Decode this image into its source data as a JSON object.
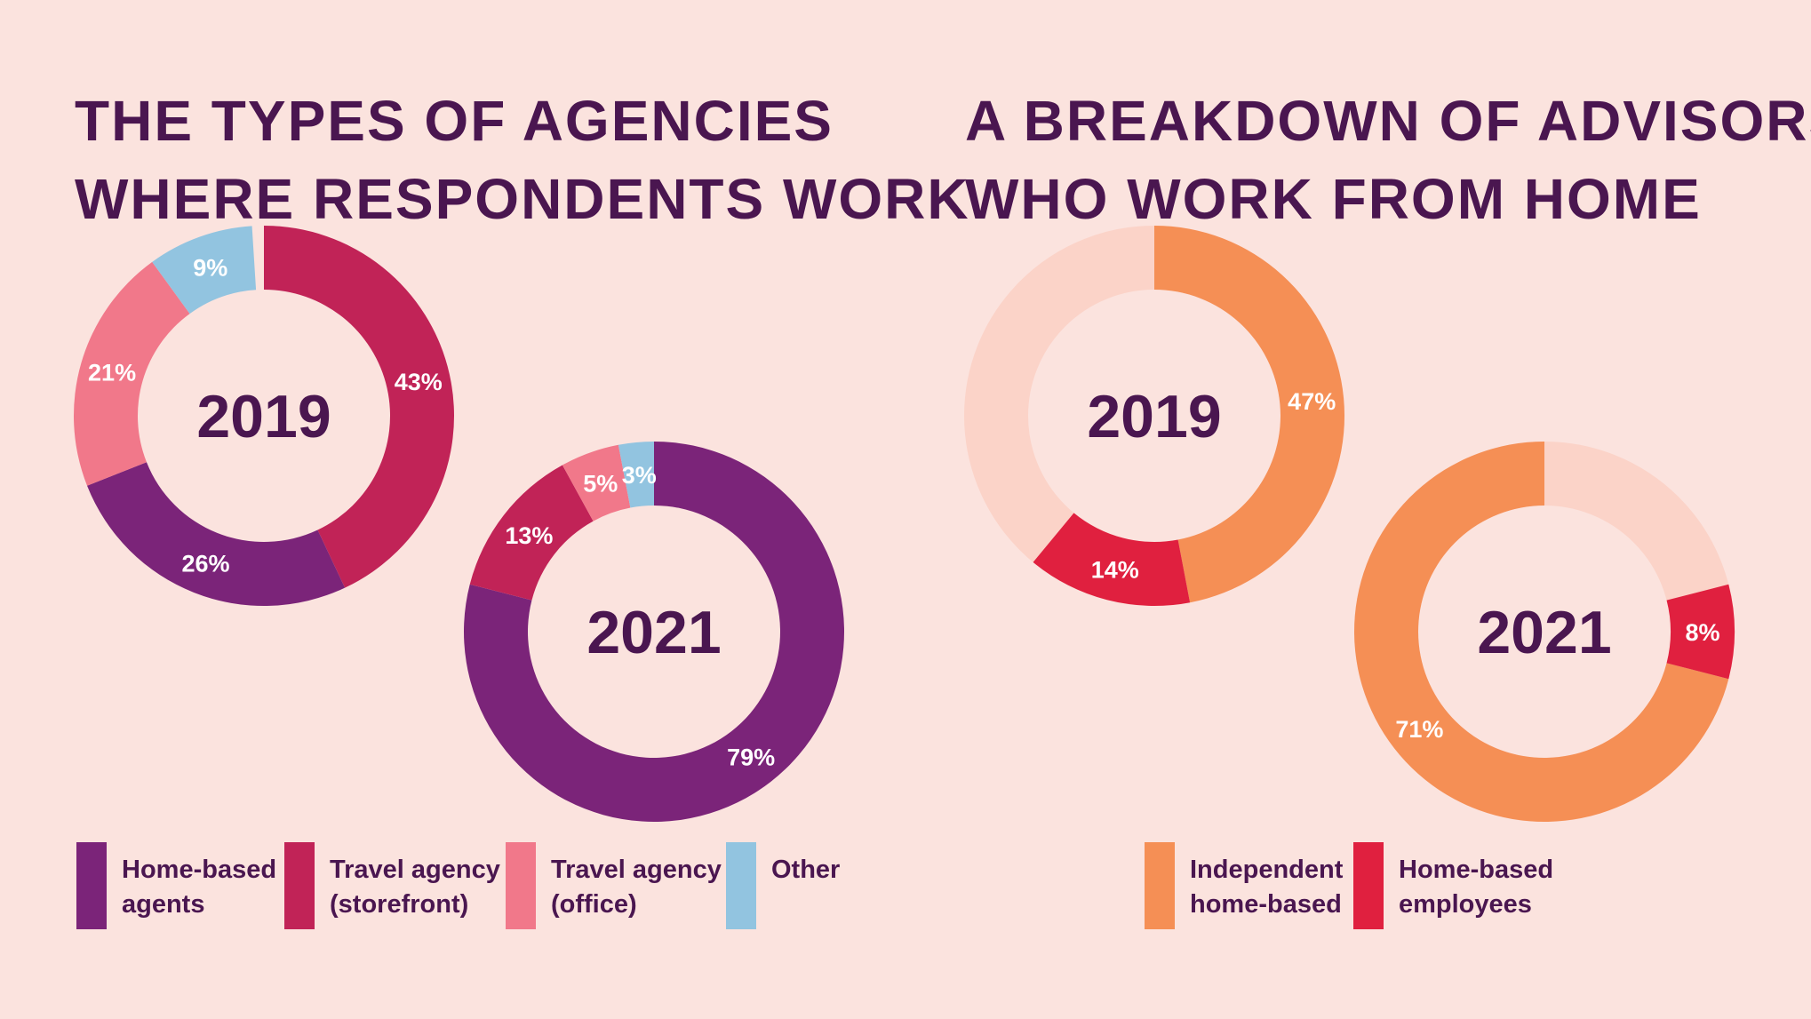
{
  "panels": {
    "left": {
      "title_line1": "THE TYPES OF AGENCIES",
      "title_line2": "WHERE RESPONDENTS WORK",
      "legend": [
        {
          "line1": "Home-based",
          "line2": "agents",
          "color": "#7b2479"
        },
        {
          "line1": "Travel agency",
          "line2": "(storefront)",
          "color": "#c12357"
        },
        {
          "line1": "Travel agency",
          "line2": "(office)",
          "color": "#f1788a"
        },
        {
          "line1": "Other",
          "line2": "",
          "color": "#92c4e0"
        }
      ]
    },
    "right": {
      "title_line1": "A BREAKDOWN OF ADVISORS",
      "title_line2": "WHO WORK FROM HOME",
      "legend": [
        {
          "line1": "Independent",
          "line2": "home-based",
          "color": "#f58f55"
        },
        {
          "line1": "Home-based",
          "line2": "employees",
          "color": "#e0203f"
        }
      ]
    }
  },
  "chart_data": [
    {
      "type": "pie",
      "donut": true,
      "center_label": "2019",
      "categories": [
        "Travel agency (storefront)",
        "Home-based agents",
        "Travel agency (office)",
        "Other"
      ],
      "values": [
        43,
        26,
        21,
        9
      ],
      "labels": [
        "43%",
        "26%",
        "21%",
        "9%"
      ],
      "colors": [
        "#c12357",
        "#7b2479",
        "#f1788a",
        "#92c4e0"
      ]
    },
    {
      "type": "pie",
      "donut": true,
      "center_label": "2021",
      "categories": [
        "Home-based agents",
        "Travel agency (storefront)",
        "Travel agency (office)",
        "Other"
      ],
      "values": [
        79,
        13,
        5,
        3
      ],
      "labels": [
        "79%",
        "13%",
        "5%",
        "3%"
      ],
      "colors": [
        "#7b2479",
        "#c12357",
        "#f1788a",
        "#92c4e0"
      ]
    },
    {
      "type": "pie",
      "donut": true,
      "center_label": "2019",
      "categories": [
        "Independent home-based",
        "Home-based employees"
      ],
      "values": [
        47,
        14
      ],
      "labels": [
        "47%",
        "14%"
      ],
      "colors": [
        "#f58f55",
        "#e0203f"
      ],
      "remainder_color": "#fbd3c8"
    },
    {
      "type": "pie",
      "donut": true,
      "center_label": "2021",
      "categories": [
        "Independent home-based",
        "Home-based employees"
      ],
      "values": [
        71,
        8
      ],
      "labels": [
        "71%",
        "8%"
      ],
      "colors": [
        "#f58f55",
        "#e0203f"
      ],
      "remainder_color": "#fbd3c8"
    }
  ]
}
